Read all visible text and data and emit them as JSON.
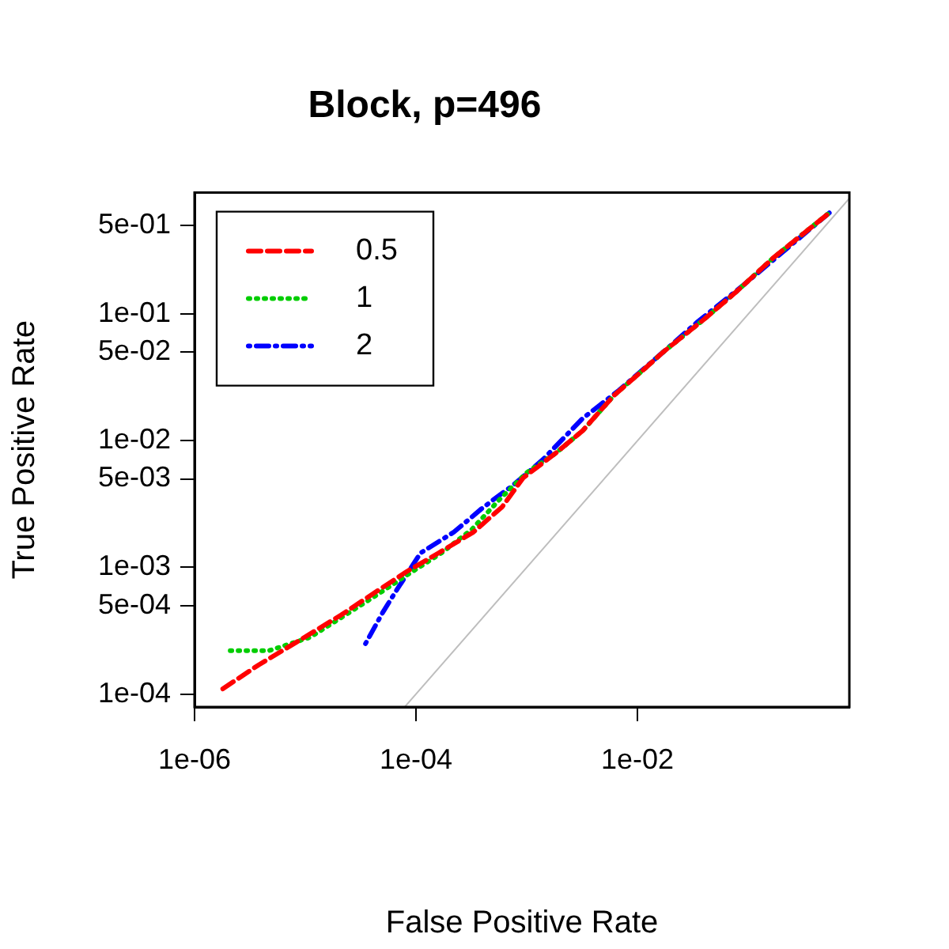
{
  "chart_data": {
    "type": "line",
    "title": "Block, p=496",
    "xlabel": "False Positive Rate",
    "ylabel": "True Positive Rate",
    "log": "xy",
    "grid": false,
    "legend": "top left",
    "marker": "none",
    "xlim": [
      1e-06,
      0.82
    ],
    "ylim": [
      7.9e-05,
      0.91
    ],
    "xticks": [
      {
        "value": 1e-06,
        "label": "1e-06"
      },
      {
        "value": 0.0001,
        "label": "1e-04"
      },
      {
        "value": 0.01,
        "label": "1e-02"
      }
    ],
    "yticks": [
      {
        "value": 0.0001,
        "label": "1e-04"
      },
      {
        "value": 0.0005,
        "label": "5e-04"
      },
      {
        "value": 0.001,
        "label": "1e-03"
      },
      {
        "value": 0.005,
        "label": "5e-03"
      },
      {
        "value": 0.01,
        "label": "1e-02"
      },
      {
        "value": 0.05,
        "label": "5e-02"
      },
      {
        "value": 0.1,
        "label": "1e-01"
      },
      {
        "value": 0.5,
        "label": "5e-01"
      }
    ],
    "series": [
      {
        "name": "0.5",
        "color": "#ff0000",
        "line_style": "dashed",
        "x": [
          1.8e-06,
          3.8e-06,
          9.8e-06,
          2.1e-05,
          4.1e-05,
          8.3e-05,
          0.00016,
          0.00033,
          0.0006,
          0.00093,
          0.0018,
          0.0032,
          0.0062,
          0.012,
          0.017,
          0.04,
          0.078,
          0.17,
          0.54
        ],
        "values": [
          0.00011,
          0.00017,
          0.00028,
          0.00042,
          0.00062,
          0.00093,
          0.0013,
          0.0019,
          0.003,
          0.0051,
          0.0079,
          0.012,
          0.023,
          0.038,
          0.05,
          0.091,
          0.15,
          0.28,
          0.63
        ]
      },
      {
        "name": "1",
        "color": "#00cd00",
        "line_style": "dotted",
        "x": [
          2.1e-06,
          4.7e-06,
          1.1e-05,
          2.1e-05,
          4.1e-05,
          8.3e-05,
          0.00017,
          0.00032,
          0.00058,
          0.001,
          0.0018,
          0.0032,
          0.0062,
          0.012,
          0.017,
          0.04,
          0.078,
          0.17,
          0.54
        ],
        "values": [
          0.00022,
          0.00022,
          0.00028,
          0.0004,
          0.00058,
          0.00087,
          0.0013,
          0.002,
          0.0035,
          0.0056,
          0.0079,
          0.012,
          0.023,
          0.038,
          0.05,
          0.091,
          0.15,
          0.28,
          0.63
        ]
      },
      {
        "name": "2",
        "color": "#0000ff",
        "line_style": "dashdot",
        "x": [
          3.5e-05,
          5e-05,
          6.6e-05,
          0.00011,
          0.00022,
          0.00039,
          0.00054,
          0.00074,
          0.0014,
          0.0032,
          0.0068,
          0.017,
          0.035,
          0.091,
          0.54
        ],
        "values": [
          0.00025,
          0.00044,
          0.00065,
          0.0013,
          0.0019,
          0.0029,
          0.0036,
          0.0044,
          0.0071,
          0.015,
          0.025,
          0.05,
          0.087,
          0.17,
          0.63
        ]
      },
      {
        "color": "#bebebe",
        "line_style": "solid",
        "x": [
          8e-05,
          0.82
        ],
        "values": [
          8e-05,
          0.82
        ]
      }
    ]
  }
}
